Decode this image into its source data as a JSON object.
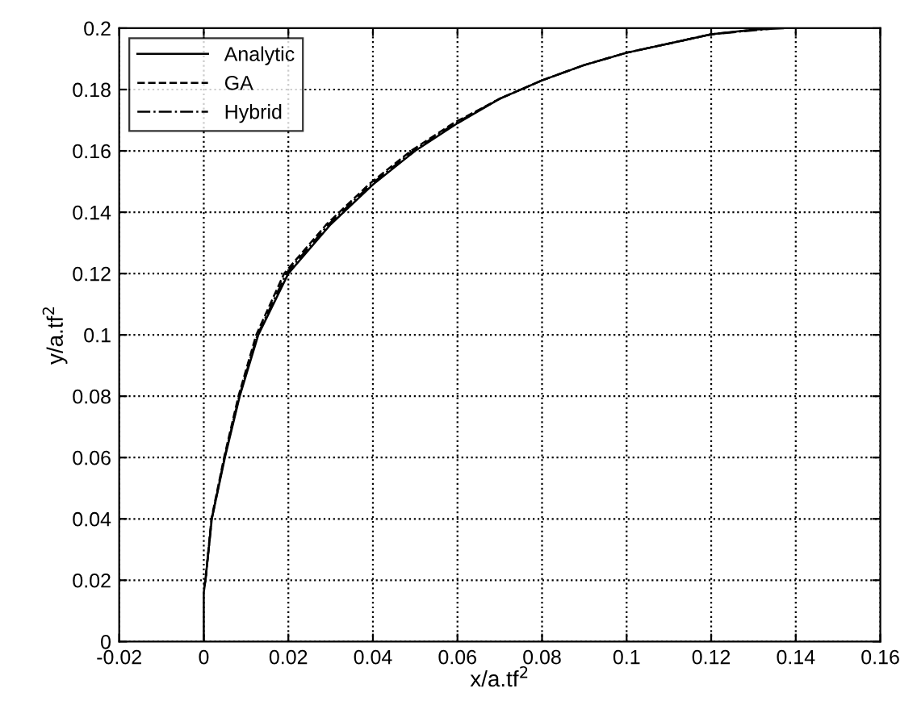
{
  "chart_data": {
    "type": "line",
    "xlabel": "x/a.tf$^{2}$",
    "ylabel": "y/a.tf$^{2}$",
    "xlim": [
      -0.02,
      0.16
    ],
    "ylim": [
      0,
      0.2
    ],
    "xticks": [
      -0.02,
      0,
      0.02,
      0.04,
      0.06,
      0.08,
      0.1,
      0.12,
      0.14,
      0.16
    ],
    "yticks": [
      0,
      0.02,
      0.04,
      0.06,
      0.08,
      0.1,
      0.12,
      0.14,
      0.16,
      0.18,
      0.2
    ],
    "grid": true,
    "legend": "top left",
    "series": [
      {
        "name": "Analytic",
        "color": "#000000",
        "line_style": "solid",
        "x": [
          0,
          0,
          0.0004,
          0.0019,
          0.005,
          0.0085,
          0.0129,
          0.02,
          0.03,
          0.04,
          0.05,
          0.06,
          0.07,
          0.08,
          0.09,
          0.1,
          0.11,
          0.12,
          0.13,
          0.137
        ],
        "values": [
          0,
          0.016,
          0.02,
          0.04,
          0.06,
          0.08,
          0.1,
          0.12,
          0.136,
          0.149,
          0.16,
          0.169,
          0.177,
          0.183,
          0.188,
          0.192,
          0.195,
          0.198,
          0.1995,
          0.2
        ]
      },
      {
        "name": "GA",
        "color": "#000000",
        "line_style": "dashed",
        "x": [
          0.0001,
          0.0004,
          0.0018,
          0.0048,
          0.0082,
          0.0124,
          0.019,
          0.029,
          0.039,
          0.049,
          0.059,
          0.07,
          0.08,
          0.09,
          0.1,
          0.11,
          0.12,
          0.13
        ],
        "values": [
          0.018,
          0.02,
          0.04,
          0.06,
          0.08,
          0.1,
          0.12,
          0.136,
          0.149,
          0.16,
          0.169,
          0.177,
          0.183,
          0.188,
          0.192,
          0.195,
          0.198,
          0.1995
        ]
      },
      {
        "name": "Hybrid",
        "color": "#000000",
        "line_style": "dashdot",
        "x": [
          0.0002,
          0.0004,
          0.0019,
          0.0049,
          0.0084,
          0.0127,
          0.0195,
          0.0295,
          0.0395,
          0.0495,
          0.0595,
          0.07,
          0.08,
          0.09,
          0.1,
          0.11,
          0.12,
          0.134
        ],
        "values": [
          0.019,
          0.02,
          0.04,
          0.06,
          0.08,
          0.1,
          0.12,
          0.136,
          0.149,
          0.16,
          0.169,
          0.177,
          0.183,
          0.188,
          0.192,
          0.195,
          0.198,
          0.1998
        ]
      }
    ]
  }
}
